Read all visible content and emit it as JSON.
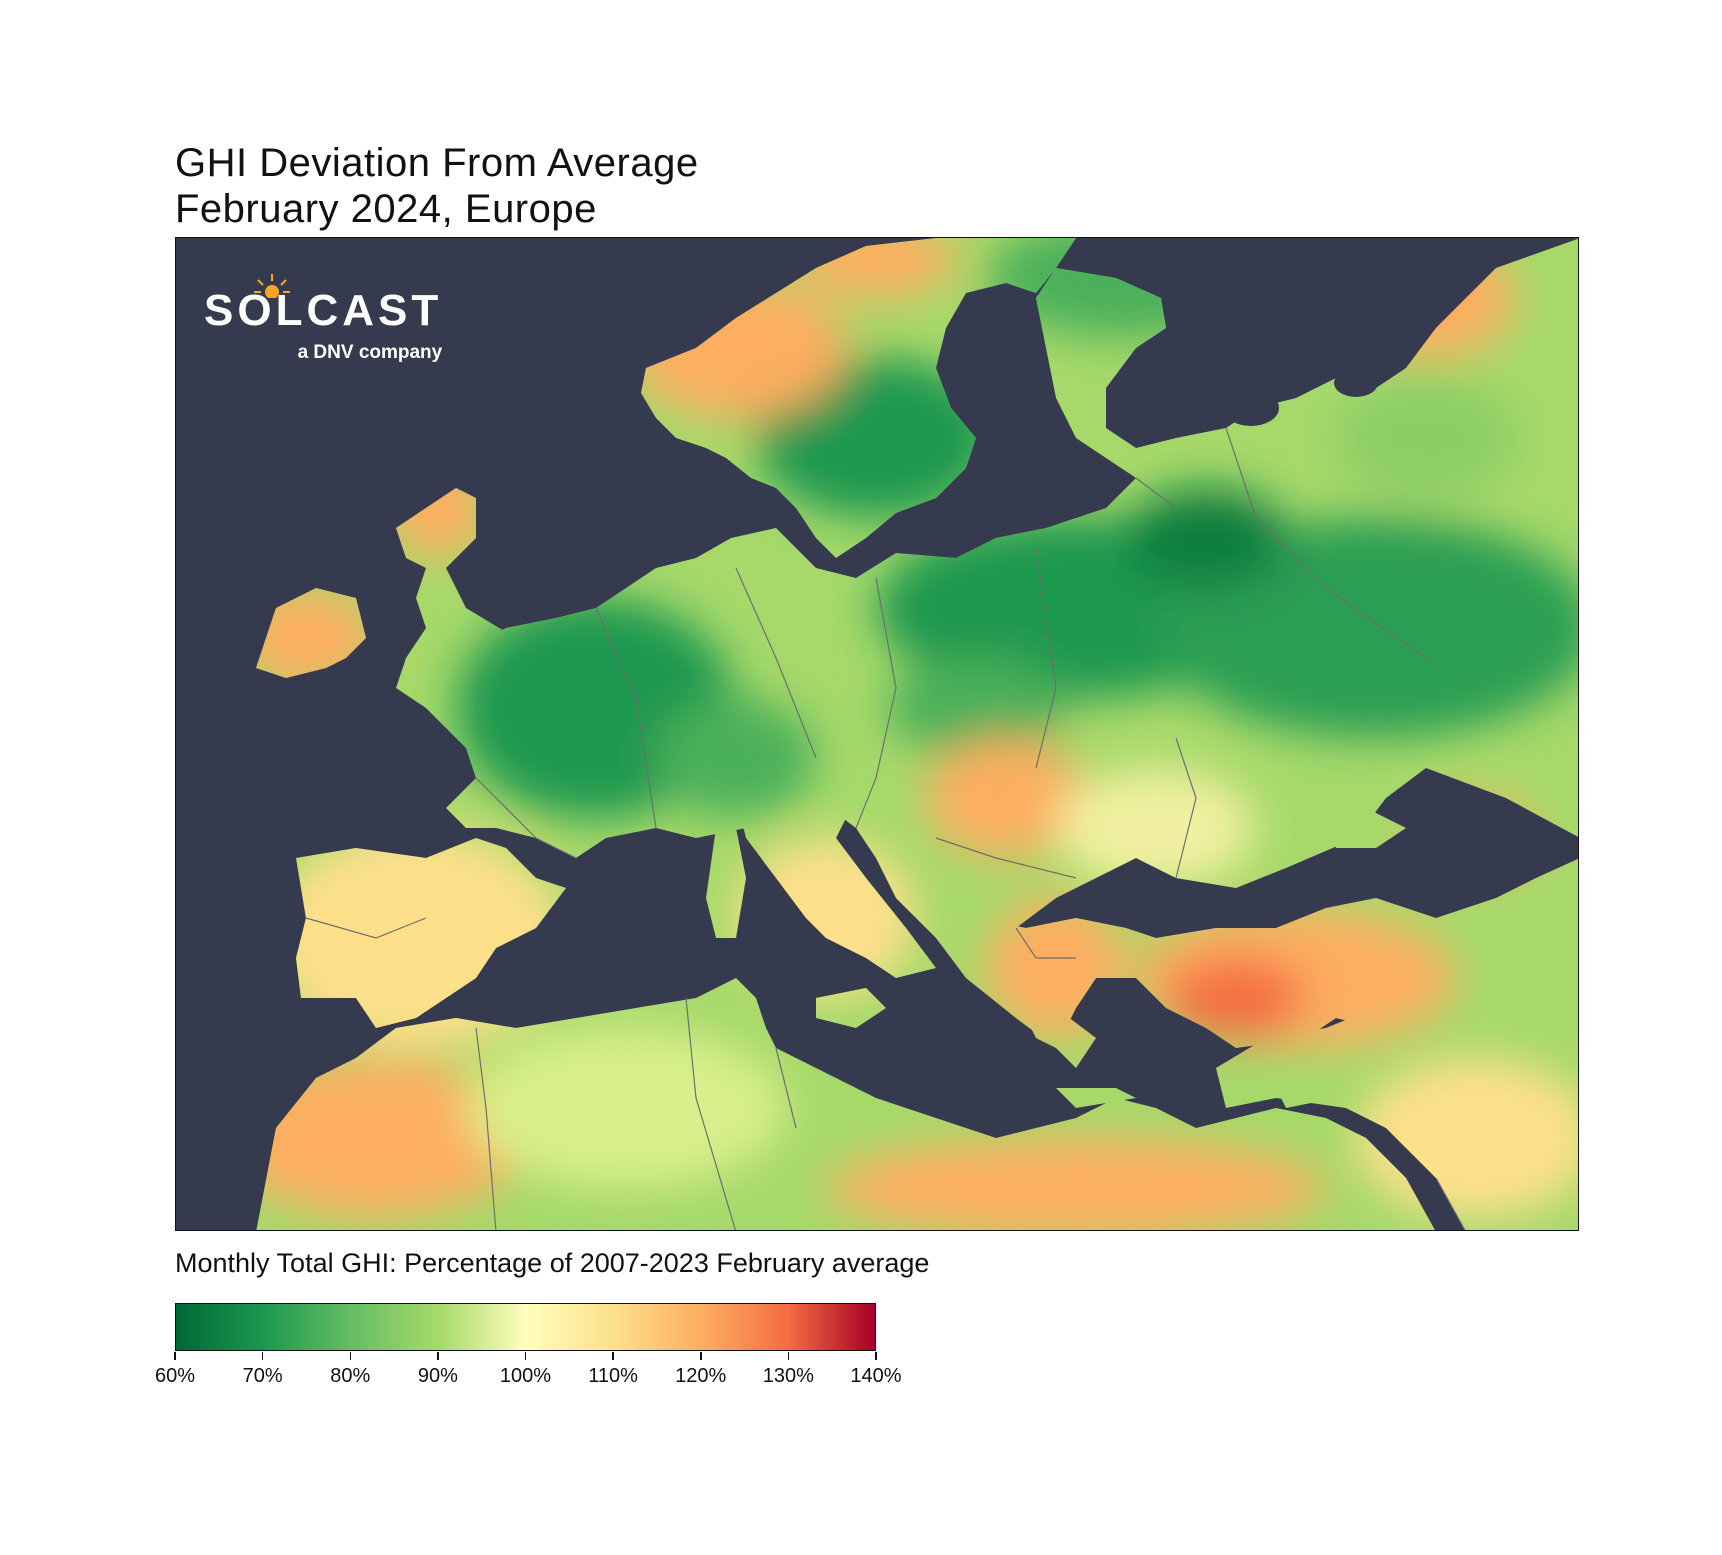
{
  "title": {
    "line1": "GHI Deviation From Average",
    "line2": "February 2024, Europe"
  },
  "logo": {
    "wordmark": "SOLCAST",
    "tagline": "a DNV company",
    "icon": "sun-circuit-icon"
  },
  "colorbar": {
    "label": "Monthly Total GHI: Percentage of 2007-2023 February average",
    "ticks": [
      "60%",
      "70%",
      "80%",
      "90%",
      "100%",
      "110%",
      "120%",
      "130%",
      "140%"
    ],
    "range": [
      60,
      140
    ],
    "colors": [
      "#006837",
      "#1a9850",
      "#66bd63",
      "#a6d96a",
      "#fffebe",
      "#fee08b",
      "#fdae61",
      "#f46d43",
      "#a50026"
    ]
  },
  "map": {
    "sea_color": "#363a4f",
    "border_color": "#6e6e6e"
  }
}
